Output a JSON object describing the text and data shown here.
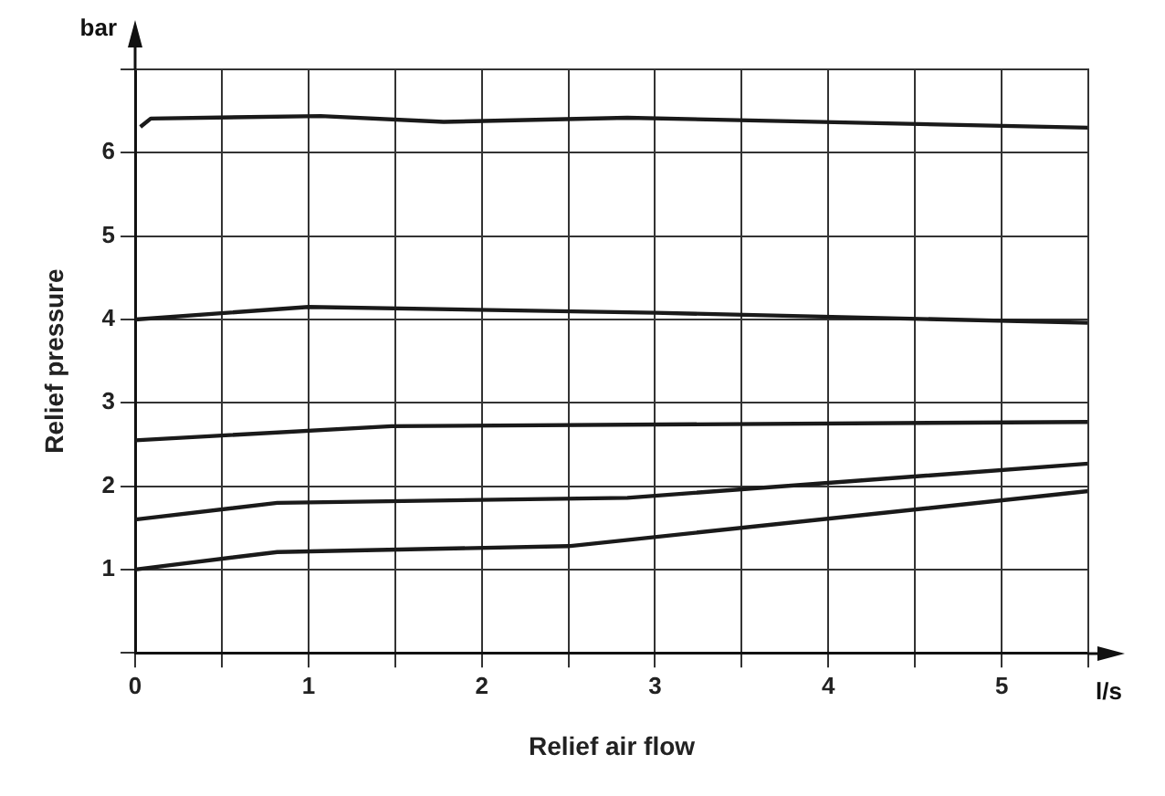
{
  "chart_data": {
    "type": "line",
    "xlabel": "Relief air flow",
    "ylabel": "Relief pressure",
    "annotations": [
      "bar",
      "l/s"
    ],
    "xlim": [
      0,
      5.5
    ],
    "xticks": [
      0,
      {
        "value": 0.5,
        "label": null
      },
      1,
      {
        "value": 1.5,
        "label": null
      },
      2,
      {
        "value": 2.5,
        "label": null
      },
      3,
      {
        "value": 3.5,
        "label": null
      },
      4,
      {
        "value": 4.5,
        "label": null
      },
      5,
      {
        "value": 5.5,
        "label": null
      }
    ],
    "ylim": [
      0,
      7
    ],
    "yticks": [
      {
        "value": 0,
        "label": null
      },
      1,
      2,
      3,
      4,
      5,
      6,
      {
        "value": 7,
        "label": null
      }
    ],
    "grid": true,
    "legend": false,
    "marker": "none",
    "line_style": "solid",
    "series": [
      {
        "color": "#1a1a1a",
        "x": [
          0,
          0.82,
          2.5,
          5.5
        ],
        "values": [
          1.0,
          1.21,
          1.28,
          1.94
        ]
      },
      {
        "color": "#1a1a1a",
        "x": [
          0,
          0.82,
          2.84,
          5.5
        ],
        "values": [
          1.6,
          1.8,
          1.86,
          2.27
        ]
      },
      {
        "color": "#1a1a1a",
        "x": [
          0,
          1.48,
          5.5
        ],
        "values": [
          2.55,
          2.72,
          2.77
        ]
      },
      {
        "color": "#1a1a1a",
        "x": [
          0,
          1,
          3,
          5.5
        ],
        "values": [
          4.0,
          4.15,
          4.08,
          3.96
        ]
      },
      {
        "color": "#1a1a1a",
        "x": [
          0.03,
          0.09,
          1.07,
          1.78,
          2.84,
          5.5
        ],
        "values": [
          6.31,
          6.41,
          6.44,
          6.37,
          6.42,
          6.3
        ]
      }
    ]
  }
}
